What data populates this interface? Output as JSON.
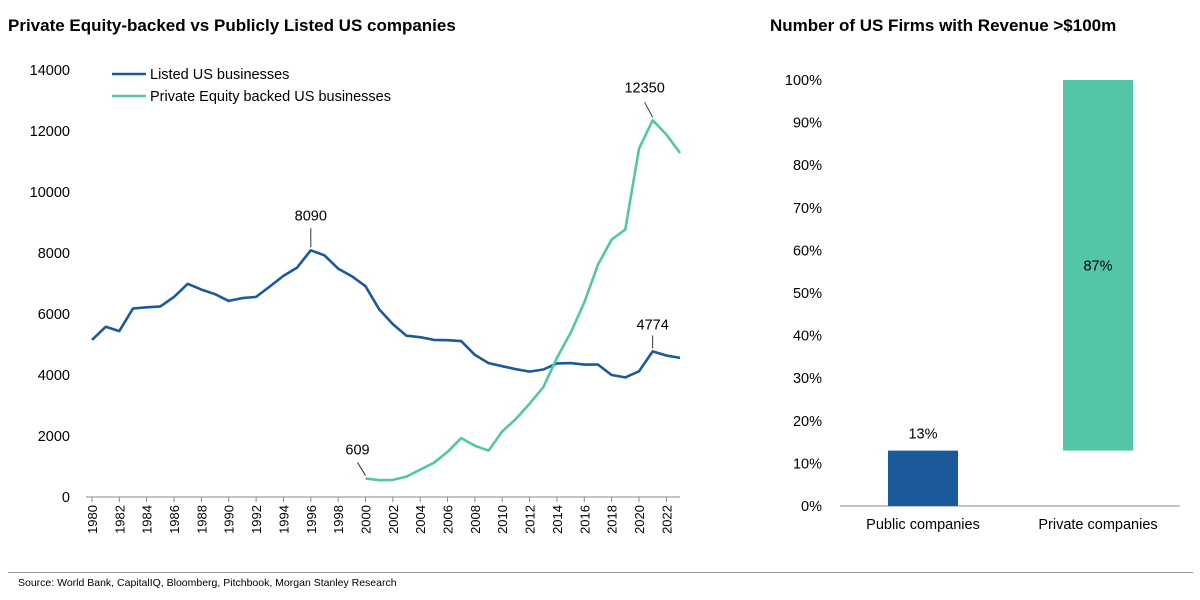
{
  "footer": {
    "source": "Source: World Bank, CapitalIQ, Bloomberg, Pitchbook, Morgan Stanley Research"
  },
  "chart_data": [
    {
      "type": "line",
      "title": "Private Equity-backed vs Publicly Listed US companies",
      "ylim": [
        0,
        14000
      ],
      "yticks": [
        0,
        2000,
        4000,
        6000,
        8000,
        10000,
        12000,
        14000
      ],
      "xlim": [
        1980,
        2023
      ],
      "xticks": [
        1980,
        1982,
        1984,
        1986,
        1988,
        1990,
        1992,
        1994,
        1996,
        1998,
        2000,
        2002,
        2004,
        2006,
        2008,
        2010,
        2012,
        2014,
        2016,
        2018,
        2020,
        2022
      ],
      "legend_position": "top-left",
      "grid": false,
      "series": [
        {
          "name": "Listed US businesses",
          "color": "#1a5a9a",
          "x": [
            1980,
            1981,
            1982,
            1983,
            1984,
            1985,
            1986,
            1987,
            1988,
            1989,
            1990,
            1991,
            1992,
            1993,
            1994,
            1995,
            1996,
            1997,
            1998,
            1999,
            2000,
            2001,
            2002,
            2003,
            2004,
            2005,
            2006,
            2007,
            2008,
            2009,
            2010,
            2011,
            2012,
            2013,
            2014,
            2015,
            2016,
            2017,
            2018,
            2019,
            2020,
            2021,
            2022,
            2023
          ],
          "values": [
            5150,
            5580,
            5440,
            6180,
            6220,
            6250,
            6560,
            6990,
            6800,
            6650,
            6430,
            6520,
            6560,
            6900,
            7250,
            7520,
            8090,
            7920,
            7490,
            7240,
            6910,
            6150,
            5670,
            5290,
            5240,
            5150,
            5140,
            5110,
            4660,
            4390,
            4290,
            4190,
            4110,
            4180,
            4380,
            4390,
            4340,
            4340,
            4000,
            3920,
            4120,
            4774,
            4640,
            4560
          ]
        },
        {
          "name": "Private Equity backed US businesses",
          "color": "#52c6a6",
          "x": [
            2000,
            2001,
            2002,
            2003,
            2004,
            2005,
            2006,
            2007,
            2008,
            2009,
            2010,
            2011,
            2012,
            2013,
            2014,
            2015,
            2016,
            2017,
            2018,
            2019,
            2020,
            2021,
            2022,
            2023
          ],
          "values": [
            609,
            550,
            560,
            670,
            900,
            1120,
            1480,
            1930,
            1680,
            1520,
            2150,
            2560,
            3060,
            3600,
            4560,
            5380,
            6380,
            7620,
            8440,
            8770,
            11420,
            12350,
            11890,
            11280
          ]
        }
      ],
      "annotations": [
        {
          "text": "8090",
          "x": 1996,
          "y": 8090
        },
        {
          "text": "609",
          "x": 2000,
          "y": 609
        },
        {
          "text": "12350",
          "x": 2021,
          "y": 12350
        },
        {
          "text": "4774",
          "x": 2021,
          "y": 4774
        }
      ]
    },
    {
      "type": "bar",
      "title": "Number of US Firms with Revenue >$100m",
      "categories": [
        "Public companies",
        "Private companies"
      ],
      "values": [
        13,
        87
      ],
      "labels": [
        "13%",
        "87%"
      ],
      "colors": [
        "#1a5a9a",
        "#52c6a6"
      ],
      "stacking": "waterfall",
      "ylim": [
        0,
        100
      ],
      "yticks": [
        0,
        10,
        20,
        30,
        40,
        50,
        60,
        70,
        80,
        90,
        100
      ],
      "ytick_labels": [
        "0%",
        "10%",
        "20%",
        "30%",
        "40%",
        "50%",
        "60%",
        "70%",
        "80%",
        "90%",
        "100%"
      ],
      "grid": false
    }
  ]
}
